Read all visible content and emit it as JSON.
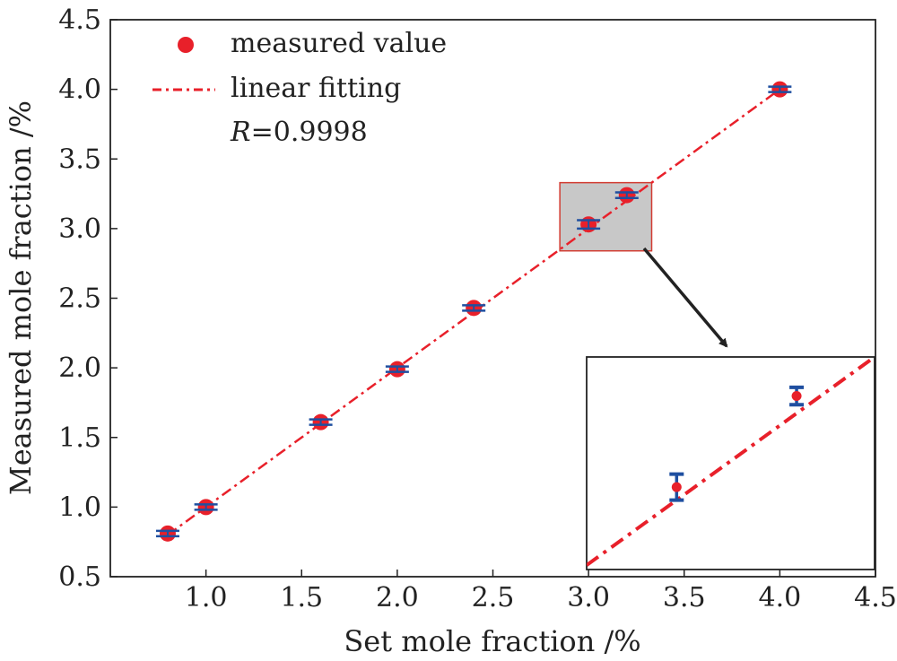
{
  "chart_data": {
    "type": "scatter",
    "xlabel": "Set mole fraction /%",
    "ylabel": "Measured mole fraction /%",
    "xlim": [
      0.5,
      4.5
    ],
    "ylim": [
      0.5,
      4.5
    ],
    "x_ticks": [
      "1.0",
      "1.5",
      "2.0",
      "2.5",
      "3.0",
      "3.5",
      "4.0",
      "4.5"
    ],
    "y_ticks": [
      "0.5",
      "1.0",
      "1.5",
      "2.0",
      "2.5",
      "3.0",
      "3.5",
      "4.0",
      "4.5"
    ],
    "grid": false,
    "series": [
      {
        "name": "measured value",
        "kind": "scatter-with-error-bars",
        "x": [
          0.8,
          1.0,
          1.6,
          2.0,
          2.4,
          3.0,
          3.2,
          4.0
        ],
        "y": [
          0.81,
          1.0,
          1.61,
          1.99,
          2.43,
          3.03,
          3.24,
          4.0
        ],
        "yerr": [
          0.01,
          0.01,
          0.01,
          0.01,
          0.015,
          0.03,
          0.02,
          0.01
        ]
      },
      {
        "name": "linear fitting",
        "kind": "line",
        "style": "dash-dot",
        "x": [
          0.8,
          4.0
        ],
        "y": [
          0.8,
          4.0
        ]
      }
    ],
    "annotation": {
      "r_label": "R",
      "r_value": "=0.9998"
    },
    "inset": {
      "description": "zoom of highlighted region",
      "xlim": [
        2.85,
        3.33
      ],
      "ylim": [
        2.84,
        3.33
      ]
    },
    "legend_position": "top-left"
  },
  "colors": {
    "marker": "#e8202a",
    "errorbar": "#1f4fa0",
    "fit_line": "#e8202a",
    "highlight_fill": "#c8c8c8",
    "highlight_border": "#d23c32",
    "axis": "#222222"
  }
}
